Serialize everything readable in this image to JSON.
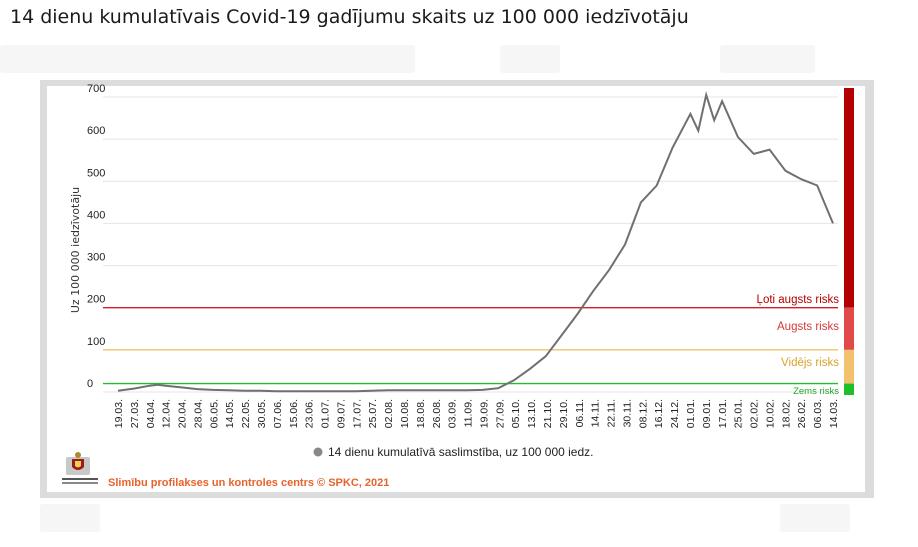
{
  "page": {
    "title": "14 dienu kumulatīvais Covid-19 gadījumu skaits uz 100 000 iedzīvotāju"
  },
  "footer": {
    "credit": "Slimību profilakses un kontroles centrs © SPKC, 2021",
    "logo_icon": "spkc-coat-of-arms-icon",
    "credit_color": "#e8632b"
  },
  "risk_colors": {
    "very_high": "#b30000",
    "high": "#e04a4a",
    "medium": "#f1c16e",
    "low": "#1fbf2a"
  },
  "chart_data": {
    "type": "line",
    "title": "",
    "xlabel": "",
    "ylabel": "Uz 100 000 iedzīvotāju",
    "ylim": [
      0,
      700
    ],
    "yticks": [
      0,
      100,
      200,
      300,
      400,
      500,
      600,
      700
    ],
    "x_tick_labels": [
      "19.03.",
      "27.03.",
      "04.04.",
      "12.04.",
      "20.04.",
      "28.04.",
      "06.05.",
      "14.05.",
      "22.05.",
      "30.05.",
      "07.06.",
      "15.06.",
      "23.06.",
      "01.07.",
      "09.07.",
      "17.07.",
      "25.07.",
      "02.08.",
      "10.08.",
      "18.08.",
      "26.08.",
      "03.09.",
      "11.09.",
      "19.09.",
      "27.09.",
      "05.10.",
      "13.10.",
      "21.10.",
      "29.10.",
      "06.11.",
      "14.11.",
      "22.11.",
      "30.11.",
      "08.12.",
      "16.12.",
      "24.12.",
      "01.01.",
      "09.01.",
      "17.01.",
      "25.01.",
      "02.02.",
      "10.02.",
      "18.02.",
      "26.02.",
      "06.03.",
      "14.03."
    ],
    "legend": {
      "label": "14 dienu kumulatīvā saslimstība, uz 100 000 iedz.",
      "position": "bottom",
      "marker_color": "#888888"
    },
    "series": [
      {
        "name": "14 dienu kumulatīvā saslimstība, uz 100 000 iedz.",
        "color": "#707070",
        "values": [
          [
            "19.03.",
            3
          ],
          [
            "27.03.",
            8
          ],
          [
            "04.04.",
            15
          ],
          [
            "08.04.",
            17
          ],
          [
            "12.04.",
            15
          ],
          [
            "20.04.",
            11
          ],
          [
            "28.04.",
            7
          ],
          [
            "06.05.",
            5
          ],
          [
            "14.05.",
            4
          ],
          [
            "22.05.",
            3
          ],
          [
            "30.05.",
            3
          ],
          [
            "07.06.",
            2
          ],
          [
            "15.06.",
            2
          ],
          [
            "23.06.",
            2
          ],
          [
            "01.07.",
            2
          ],
          [
            "09.07.",
            2
          ],
          [
            "17.07.",
            2
          ],
          [
            "25.07.",
            3
          ],
          [
            "02.08.",
            4
          ],
          [
            "10.08.",
            4
          ],
          [
            "18.08.",
            4
          ],
          [
            "26.08.",
            4
          ],
          [
            "03.09.",
            4
          ],
          [
            "11.09.",
            4
          ],
          [
            "19.09.",
            5
          ],
          [
            "27.09.",
            9
          ],
          [
            "05.10.",
            28
          ],
          [
            "13.10.",
            55
          ],
          [
            "21.10.",
            85
          ],
          [
            "29.10.",
            135
          ],
          [
            "06.11.",
            185
          ],
          [
            "14.11.",
            240
          ],
          [
            "22.11.",
            290
          ],
          [
            "30.11.",
            350
          ],
          [
            "08.12.",
            450
          ],
          [
            "16.12.",
            490
          ],
          [
            "24.12.",
            580
          ],
          [
            "01.01.",
            660
          ],
          [
            "05.01.",
            620
          ],
          [
            "09.01.",
            705
          ],
          [
            "13.01.",
            645
          ],
          [
            "17.01.",
            690
          ],
          [
            "25.01.",
            605
          ],
          [
            "02.02.",
            565
          ],
          [
            "10.02.",
            575
          ],
          [
            "18.02.",
            525
          ],
          [
            "26.02.",
            505
          ],
          [
            "06.03.",
            490
          ],
          [
            "10.03.",
            445
          ],
          [
            "14.03.",
            400
          ]
        ]
      }
    ],
    "thresholds": [
      {
        "label": "Ļoti augsts risks",
        "value": 200,
        "color": "#d42020",
        "label_color": "#b30000"
      },
      {
        "label": "Augsts risks",
        "value": 100,
        "color": "#f1c16e",
        "label_color": "#d43b3b"
      },
      {
        "label": "Vidējs risks",
        "value": 20,
        "color": "#1fbf2a",
        "label_color": "#d8a32a"
      },
      {
        "label": "Zems risks",
        "value": 0,
        "color": "#1fbf2a",
        "label_color": "#21a82a"
      }
    ],
    "risk_bar": [
      {
        "from": 200,
        "to": 700,
        "color": "#b30000"
      },
      {
        "from": 100,
        "to": 200,
        "color": "#e04a4a"
      },
      {
        "from": 20,
        "to": 100,
        "color": "#f1c16e"
      },
      {
        "from": 0,
        "to": 20,
        "color": "#1fbf2a"
      }
    ],
    "grid": true
  }
}
